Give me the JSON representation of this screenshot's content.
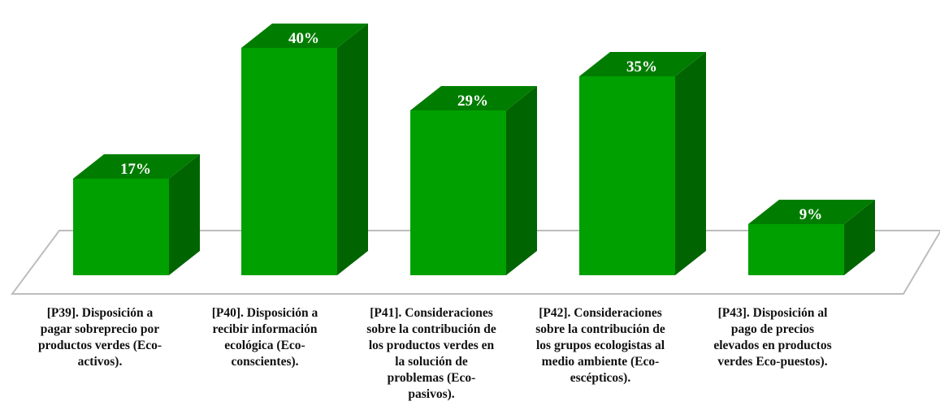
{
  "chart_data": {
    "type": "bar",
    "title": "",
    "xlabel": "",
    "ylabel": "",
    "ylim": [
      0,
      45
    ],
    "categories": [
      [
        "[P39]. Disposición a",
        "pagar sobreprecio por",
        "productos verdes (Eco-",
        "activos)."
      ],
      [
        "[P40]. Disposición a",
        "recibir información",
        "ecológica (Eco-",
        "conscientes)."
      ],
      [
        "[P41]. Consideraciones",
        "sobre la contribución de",
        "los productos verdes en",
        "la solución de",
        "problemas (Eco-",
        "pasivos)."
      ],
      [
        "[P42]. Consideraciones",
        "sobre la contribución de",
        "los grupos ecologistas al",
        "medio ambiente  (Eco-",
        "escépticos)."
      ],
      [
        "[P43]. Disposición al",
        "pago de precios",
        "elevados en productos",
        "verdes Eco-puestos)."
      ]
    ],
    "values": [
      17,
      40,
      29,
      35,
      9
    ],
    "value_labels": [
      "17%",
      "40%",
      "29%",
      "35%",
      "9%"
    ],
    "grid": false,
    "legend": "none",
    "colors": {
      "front": "#00a000",
      "side": "#006400",
      "top": "#007d00",
      "floor_stroke": "#bdbdbd"
    }
  }
}
